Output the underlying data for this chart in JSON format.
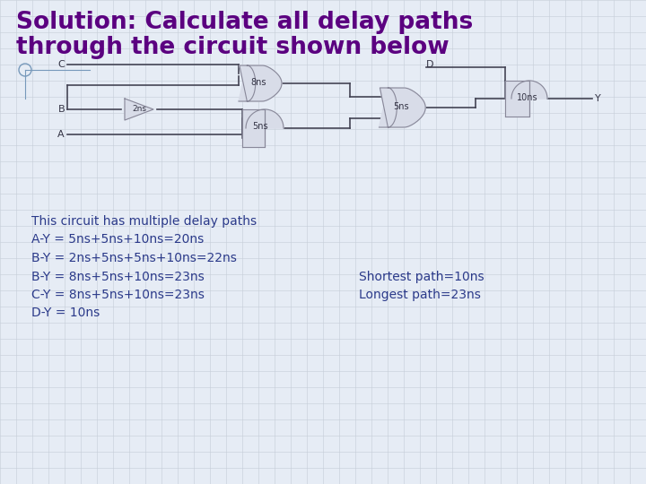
{
  "title_line1": "Solution: Calculate all delay paths",
  "title_line2": "through the circuit shown below",
  "title_color": "#5B0080",
  "bg_color": "#E6ECF5",
  "grid_color": "#C5CDD8",
  "text_lines": [
    "This circuit has multiple delay paths",
    "A-Y = 5ns+5ns+10ns=20ns",
    "B-Y = 2ns+5ns+5ns+10ns=22ns",
    "B-Y = 8ns+5ns+10ns=23ns",
    "C-Y = 8ns+5ns+10ns=23ns",
    "D-Y = 10ns"
  ],
  "right_text_lines": [
    "Shortest path=10ns",
    "Longest path=23ns"
  ],
  "text_color": "#2B3A8A",
  "gate_fill": "#D8DCE8",
  "gate_outline": "#888899",
  "wire_color": "#444455",
  "label_color": "#333344"
}
